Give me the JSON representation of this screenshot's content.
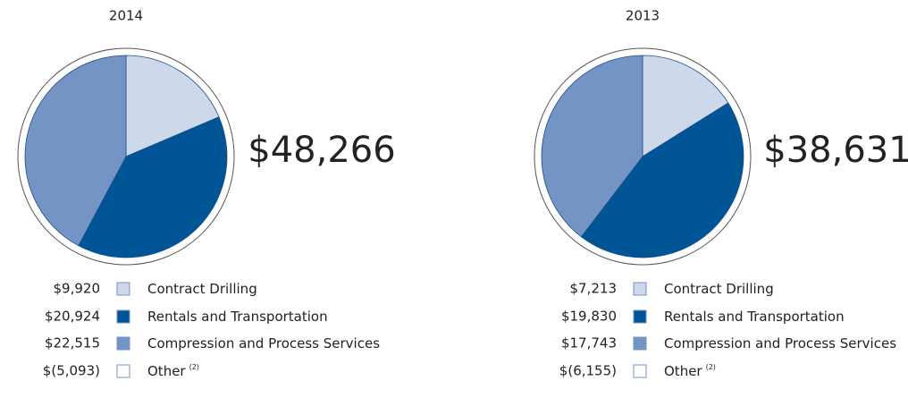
{
  "chart_data": [
    {
      "type": "pie",
      "title": "2014",
      "total": {
        "value": 48266,
        "label": "$48,266"
      },
      "categories": [
        "Contract Drilling",
        "Rentals and Transportation",
        "Compression and Process Services",
        "Other"
      ],
      "notes": [
        null,
        null,
        null,
        "(2)"
      ],
      "values": [
        9920,
        20924,
        22515,
        -5093
      ],
      "value_labels": [
        "$9,920",
        "$20,924",
        "$22,515",
        "$(5,093)"
      ],
      "colors": [
        "#cdd8ea",
        "#005596",
        "#7394c5",
        "#ffffff"
      ]
    },
    {
      "type": "pie",
      "title": "2013",
      "total": {
        "value": 38631,
        "label": "$38,631"
      },
      "categories": [
        "Contract Drilling",
        "Rentals and Transportation",
        "Compression and Process Services",
        "Other"
      ],
      "notes": [
        null,
        null,
        null,
        "(2)"
      ],
      "values": [
        7213,
        19830,
        17743,
        -6155
      ],
      "value_labels": [
        "$7,213",
        "$19,830",
        "$17,743",
        "$(6,155)"
      ],
      "colors": [
        "#cdd8ea",
        "#005596",
        "#7394c5",
        "#ffffff"
      ]
    }
  ]
}
